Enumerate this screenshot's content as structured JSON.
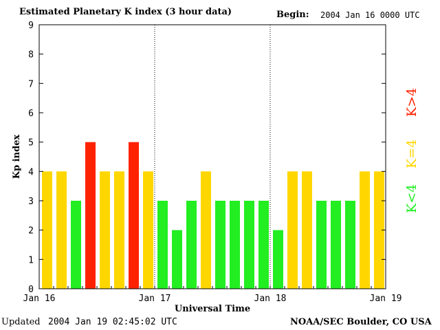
{
  "header": {
    "title": "Estimated Planetary K index (3 hour data)",
    "begin_label": "Begin:",
    "begin_value": "2004 Jan 16 0000 UTC"
  },
  "footer": {
    "updated_label": "Updated",
    "updated_value": "2004 Jan 19 02:45:02 UTC",
    "credit": "NOAA/SEC Boulder, CO USA"
  },
  "legend": {
    "items": [
      {
        "label": "K<4",
        "color": "#22ee22"
      },
      {
        "label": "K=4",
        "color": "#ffd700"
      },
      {
        "label": "K>4",
        "color": "#ff2200"
      }
    ]
  },
  "chart_data": {
    "type": "bar",
    "title": "Estimated Planetary K index (3 hour data)",
    "xlabel": "Universal Time",
    "ylabel": "Kp index",
    "ylim": [
      0,
      9
    ],
    "yticks": [
      0,
      1,
      2,
      3,
      4,
      5,
      6,
      7,
      8,
      9
    ],
    "x_tick_labels": [
      "Jan 16",
      "Jan 17",
      "Jan 18",
      "Jan 19"
    ],
    "day_separators": [
      "Jan 17",
      "Jan 18"
    ],
    "bars_per_day": 8,
    "values": [
      4,
      4,
      3,
      5,
      4,
      4,
      5,
      4,
      3,
      2,
      3,
      4,
      3,
      3,
      3,
      3,
      2,
      4,
      4,
      3,
      3,
      3,
      4,
      4
    ],
    "colors": {
      "low": "#22ee22",
      "mid": "#ffd700",
      "high": "#ff2200"
    }
  }
}
